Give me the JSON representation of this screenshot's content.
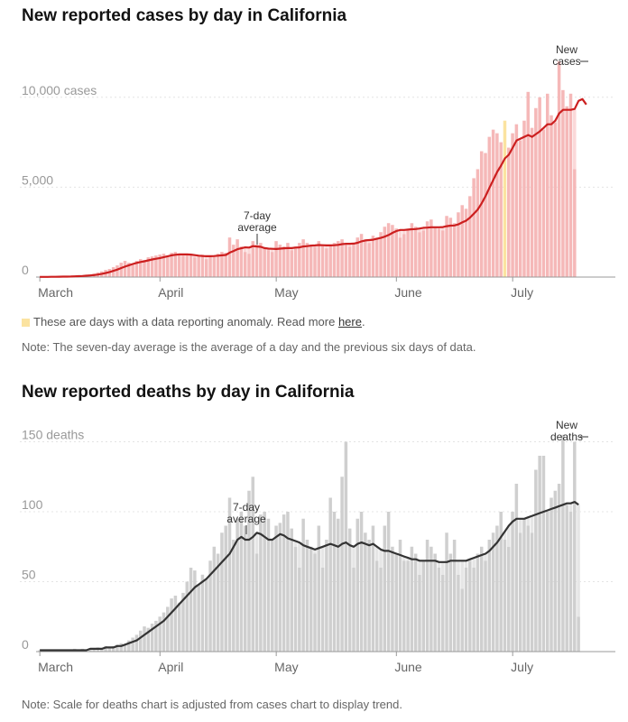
{
  "cases": {
    "title": "New reported cases by day in California",
    "legend": {
      "text": "These are days with a data reporting anomaly. Read more ",
      "link": "here",
      "end": ".",
      "anomaly_color": "#fbe3a0"
    },
    "note": "Note: The seven-day average is the average of a day and the previous six days of data.",
    "annotations": {
      "avg": [
        "7-day",
        "average"
      ],
      "bars": [
        "New",
        "cases"
      ]
    },
    "colors": {
      "bar": "#f5b8b8",
      "bar_light": "#fbd9d9",
      "line": "#cc1f1f",
      "anomaly": "#fbe3a0"
    }
  },
  "deaths": {
    "title": "New reported deaths by day in California",
    "note": "Note: Scale for deaths chart is adjusted from cases chart to display trend.",
    "annotations": {
      "avg": [
        "7-day",
        "average"
      ],
      "bars": [
        "New",
        "deaths"
      ]
    },
    "colors": {
      "bar": "#cfcfcf",
      "bar_light": "#e6e6e6",
      "line": "#333333"
    }
  },
  "chart_data": [
    {
      "type": "bar",
      "title": "New reported cases by day in California",
      "x_range": [
        "2020-03-01",
        "2020-07-27"
      ],
      "x_ticks": [
        {
          "date": "2020-03-01",
          "label": "March"
        },
        {
          "date": "2020-04-01",
          "label": "April"
        },
        {
          "date": "2020-05-01",
          "label": "May"
        },
        {
          "date": "2020-06-01",
          "label": "June"
        },
        {
          "date": "2020-07-01",
          "label": "July"
        }
      ],
      "y_ticks": [
        {
          "value": 0,
          "label": "0"
        },
        {
          "value": 5000,
          "label": "5,000"
        },
        {
          "value": 10000,
          "label": "10,000 cases"
        }
      ],
      "ylim": [
        0,
        12500
      ],
      "grid": true,
      "anomaly_days": [
        "2020-06-29"
      ],
      "series": [
        {
          "kind": "bars",
          "start_date": "2020-03-01",
          "values": [
            10,
            10,
            15,
            20,
            25,
            30,
            35,
            40,
            50,
            60,
            80,
            100,
            130,
            160,
            200,
            260,
            320,
            400,
            450,
            550,
            650,
            800,
            900,
            800,
            700,
            900,
            1000,
            950,
            1100,
            1150,
            1200,
            1250,
            1300,
            1200,
            1350,
            1400,
            1250,
            1200,
            1300,
            1250,
            1100,
            1200,
            1250,
            1000,
            1150,
            1200,
            1300,
            1400,
            1350,
            2200,
            1800,
            2100,
            1700,
            1400,
            1300,
            2000,
            1800,
            1900,
            1600,
            1500,
            1400,
            2000,
            1800,
            1700,
            1900,
            1500,
            1700,
            1900,
            2100,
            1900,
            1800,
            1700,
            2000,
            1800,
            1600,
            1800,
            1900,
            2000,
            2100,
            1800,
            1700,
            1900,
            2200,
            2400,
            2100,
            1900,
            2300,
            2200,
            2500,
            2800,
            3000,
            2900,
            2700,
            2200,
            2400,
            2600,
            3000,
            2800,
            2500,
            2600,
            3100,
            3200,
            2800,
            2700,
            2600,
            3400,
            3300,
            3000,
            3600,
            4000,
            3800,
            4500,
            5500,
            6000,
            7000,
            6900,
            7800,
            8200,
            8000,
            7500,
            8700,
            7200,
            8000,
            8500,
            7600,
            8700,
            10300,
            8300,
            9400,
            10000,
            8200,
            10200,
            9000,
            8600,
            12000,
            10400,
            9500,
            10200,
            6000
          ]
        },
        {
          "kind": "line",
          "name": "7-day average",
          "start_date": "2020-03-01",
          "values": [
            10,
            10,
            12,
            14,
            16,
            19,
            23,
            27,
            32,
            39,
            49,
            59,
            73,
            89,
            110,
            139,
            179,
            225,
            280,
            345,
            417,
            500,
            580,
            660,
            730,
            790,
            840,
            880,
            930,
            980,
            1020,
            1060,
            1110,
            1160,
            1210,
            1240,
            1260,
            1260,
            1260,
            1250,
            1220,
            1190,
            1170,
            1160,
            1160,
            1170,
            1190,
            1210,
            1230,
            1360,
            1450,
            1550,
            1600,
            1650,
            1640,
            1720,
            1700,
            1680,
            1610,
            1580,
            1570,
            1560,
            1580,
            1600,
            1610,
            1610,
            1640,
            1650,
            1700,
            1720,
            1750,
            1760,
            1780,
            1770,
            1760,
            1760,
            1770,
            1790,
            1830,
            1850,
            1850,
            1860,
            1910,
            1990,
            2040,
            2060,
            2080,
            2130,
            2180,
            2250,
            2340,
            2460,
            2560,
            2620,
            2620,
            2640,
            2660,
            2670,
            2700,
            2740,
            2750,
            2770,
            2770,
            2770,
            2780,
            2830,
            2860,
            2870,
            2930,
            3040,
            3140,
            3310,
            3530,
            3760,
            4100,
            4500,
            4960,
            5400,
            5850,
            6200,
            6600,
            6800,
            7200,
            7600,
            7700,
            7800,
            7900,
            7800,
            7950,
            8100,
            8300,
            8500,
            8500,
            8700,
            9100,
            9300,
            9300,
            9300,
            9350,
            9800,
            9900,
            9600
          ]
        }
      ]
    },
    {
      "type": "bar",
      "title": "New reported deaths by day in California",
      "x_range": [
        "2020-03-01",
        "2020-07-27"
      ],
      "x_ticks": [
        {
          "date": "2020-03-01",
          "label": "March"
        },
        {
          "date": "2020-04-01",
          "label": "April"
        },
        {
          "date": "2020-05-01",
          "label": "May"
        },
        {
          "date": "2020-06-01",
          "label": "June"
        },
        {
          "date": "2020-07-01",
          "label": "July"
        }
      ],
      "y_ticks": [
        {
          "value": 0,
          "label": "0"
        },
        {
          "value": 50,
          "label": "50"
        },
        {
          "value": 100,
          "label": "100"
        },
        {
          "value": 150,
          "label": "150 deaths"
        }
      ],
      "ylim": [
        0,
        160
      ],
      "grid": true,
      "series": [
        {
          "kind": "bars",
          "start_date": "2020-03-01",
          "values": [
            1,
            0,
            1,
            1,
            1,
            0,
            1,
            1,
            1,
            2,
            1,
            2,
            1,
            2,
            2,
            3,
            2,
            4,
            3,
            4,
            5,
            6,
            5,
            8,
            10,
            12,
            15,
            18,
            17,
            20,
            22,
            25,
            28,
            32,
            38,
            40,
            35,
            42,
            50,
            60,
            58,
            48,
            55,
            52,
            65,
            75,
            70,
            85,
            90,
            110,
            80,
            95,
            100,
            90,
            115,
            125,
            70,
            98,
            100,
            95,
            80,
            90,
            92,
            98,
            100,
            88,
            75,
            60,
            95,
            80,
            75,
            70,
            90,
            60,
            80,
            110,
            100,
            95,
            125,
            150,
            88,
            60,
            95,
            100,
            85,
            80,
            90,
            65,
            60,
            90,
            100,
            75,
            70,
            80,
            65,
            65,
            75,
            70,
            55,
            65,
            80,
            75,
            70,
            60,
            55,
            85,
            70,
            80,
            55,
            45,
            60,
            65,
            60,
            70,
            75,
            65,
            80,
            85,
            90,
            100,
            80,
            75,
            100,
            120,
            85,
            95,
            90,
            85,
            130,
            140,
            140,
            100,
            110,
            115,
            120,
            155,
            105,
            100,
            150,
            25
          ]
        },
        {
          "kind": "line",
          "name": "7-day average",
          "start_date": "2020-03-01",
          "values": [
            1,
            1,
            1,
            1,
            1,
            1,
            1,
            1,
            1,
            1,
            1,
            1,
            1,
            2,
            2,
            2,
            2,
            3,
            3,
            3,
            4,
            4,
            5,
            6,
            7,
            8,
            10,
            12,
            14,
            16,
            18,
            20,
            22,
            25,
            28,
            31,
            34,
            37,
            40,
            43,
            46,
            48,
            50,
            52,
            55,
            58,
            61,
            64,
            67,
            70,
            75,
            80,
            82,
            80,
            80,
            82,
            85,
            84,
            82,
            80,
            80,
            82,
            84,
            83,
            81,
            80,
            79,
            78,
            76,
            75,
            74,
            73,
            74,
            75,
            76,
            77,
            76,
            75,
            77,
            78,
            76,
            75,
            77,
            78,
            77,
            76,
            77,
            75,
            73,
            72,
            72,
            71,
            70,
            69,
            68,
            67,
            66,
            66,
            65,
            65,
            65,
            65,
            65,
            64,
            64,
            64,
            65,
            65,
            65,
            65,
            65,
            66,
            67,
            68,
            69,
            70,
            72,
            75,
            78,
            82,
            86,
            90,
            93,
            95,
            95,
            95,
            96,
            97,
            98,
            99,
            100,
            101,
            102,
            103,
            104,
            105,
            106,
            106,
            107,
            105
          ]
        }
      ]
    }
  ]
}
